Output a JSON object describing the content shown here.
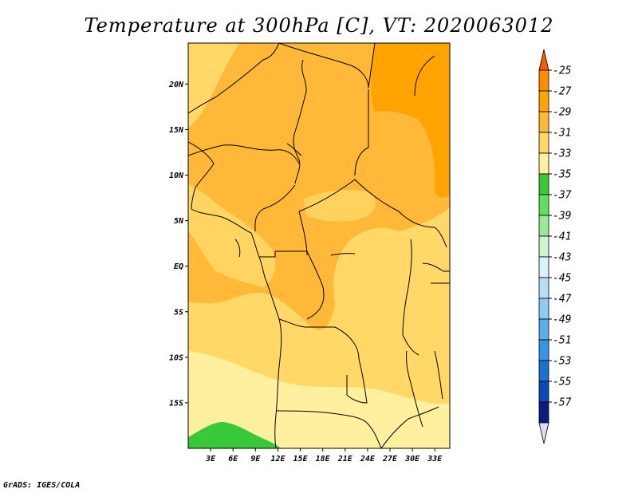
{
  "title": "Temperature at 300hPa [C], VT: 2020063012",
  "credit": "GrADS: IGES/COLA",
  "lat_ticks": [
    {
      "lat": 20,
      "label": "20N"
    },
    {
      "lat": 15,
      "label": "15N"
    },
    {
      "lat": 10,
      "label": "10N"
    },
    {
      "lat": 5,
      "label": "5N"
    },
    {
      "lat": 0,
      "label": "EQ"
    },
    {
      "lat": -5,
      "label": "5S"
    },
    {
      "lat": -10,
      "label": "10S"
    },
    {
      "lat": -15,
      "label": "15S"
    }
  ],
  "lon_ticks": [
    {
      "lon": 3,
      "label": "3E"
    },
    {
      "lon": 6,
      "label": "6E"
    },
    {
      "lon": 9,
      "label": "9E"
    },
    {
      "lon": 12,
      "label": "12E"
    },
    {
      "lon": 15,
      "label": "15E"
    },
    {
      "lon": 18,
      "label": "18E"
    },
    {
      "lon": 21,
      "label": "21E"
    },
    {
      "lon": 24,
      "label": "24E"
    },
    {
      "lon": 27,
      "label": "27E"
    },
    {
      "lon": 30,
      "label": "30E"
    },
    {
      "lon": 33,
      "label": "33E"
    }
  ],
  "extent": {
    "lon_min": 0,
    "lon_max": 35,
    "lat_min": -20,
    "lat_max": 24.5
  },
  "colorbar": {
    "labels": [
      "-25",
      "-27",
      "-29",
      "-31",
      "-33",
      "-35",
      "-37",
      "-39",
      "-41",
      "-43",
      "-45",
      "-47",
      "-49",
      "-51",
      "-53",
      "-55",
      "-57"
    ],
    "colors": [
      "#ff5a00",
      "#ff8c00",
      "#ffa300",
      "#ffb838",
      "#ffd868",
      "#fff09f",
      "#37c937",
      "#5fdf5f",
      "#9be89b",
      "#cff3cf",
      "#d8f0f8",
      "#b7dff4",
      "#8dcbf0",
      "#5aaeeb",
      "#3694e2",
      "#1c70cf",
      "#0b4ab0",
      "#0a1d80",
      "#dcdcf5"
    ]
  }
}
